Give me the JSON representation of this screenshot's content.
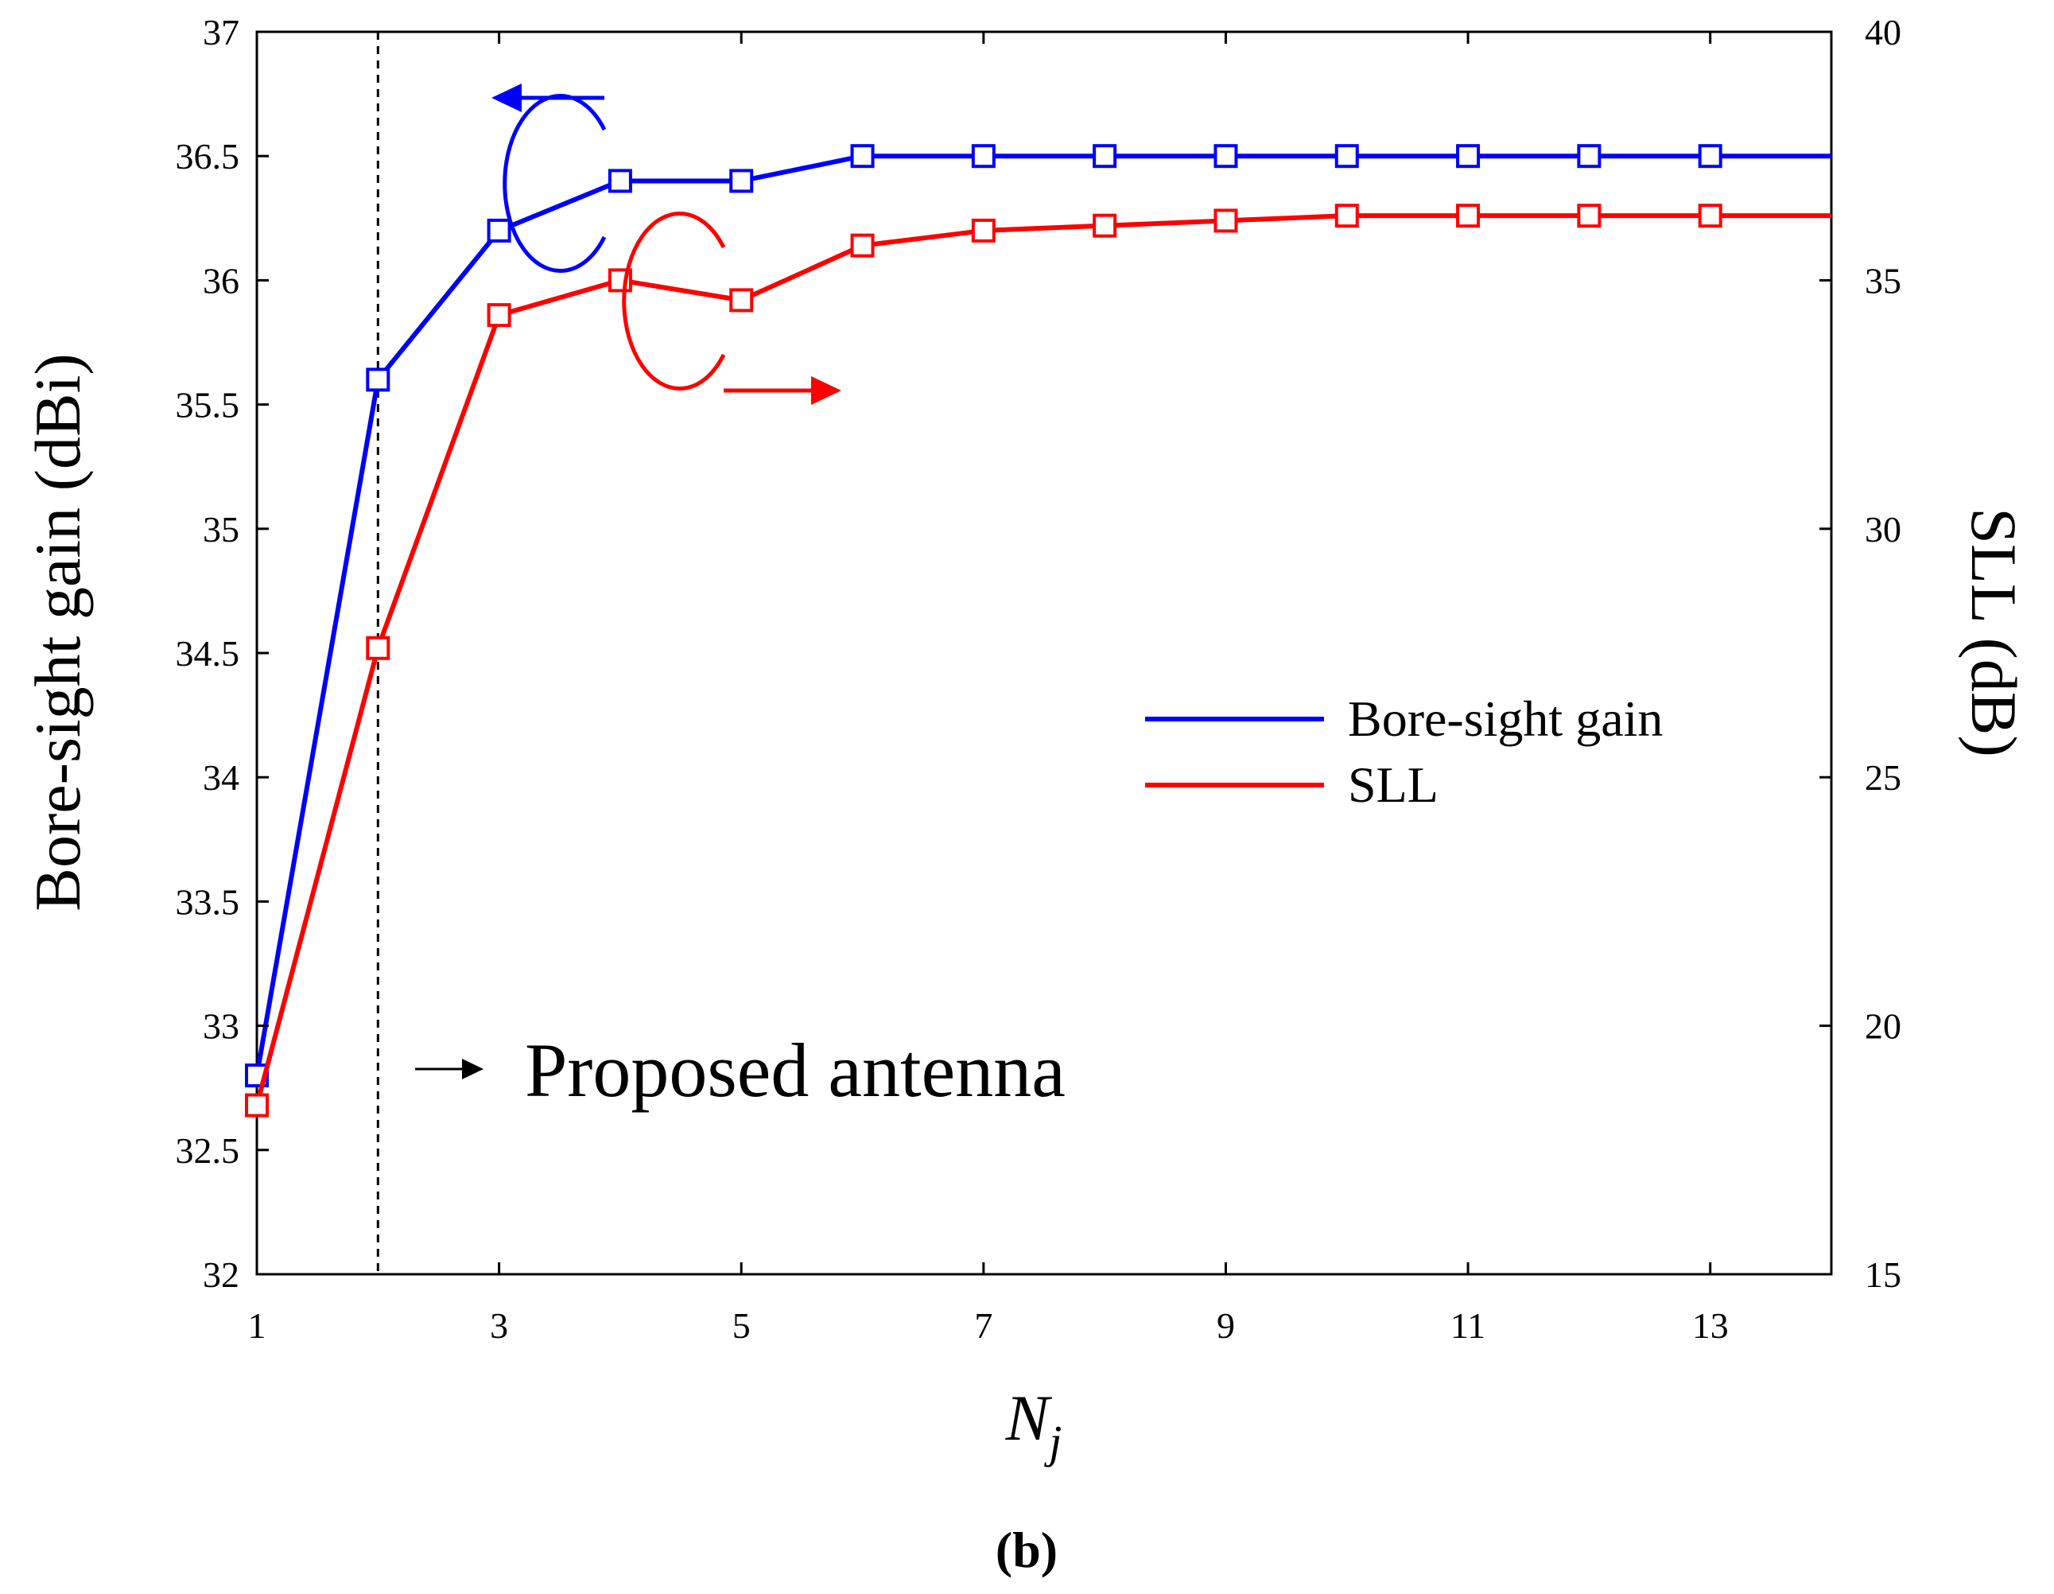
{
  "panel_label": "(b)",
  "annotation": "Proposed antenna",
  "colors": {
    "gain": "#0000ff",
    "sll": "#ff0000",
    "axes": "#000000"
  },
  "chart_data": {
    "type": "line",
    "title": "",
    "xlabel_main": "N",
    "xlabel_sub": "j",
    "ylabel_left": "Bore-sight gain (dBi)",
    "ylabel_right": "SLL (dB)",
    "xlim": [
      1,
      14
    ],
    "xticks": [
      1,
      3,
      5,
      7,
      9,
      11,
      13
    ],
    "ylim_left": [
      32,
      37
    ],
    "yticks_left": [
      32,
      32.5,
      33,
      33.5,
      34,
      34.5,
      35,
      35.5,
      36,
      36.5,
      37
    ],
    "ylim_right": [
      15,
      40
    ],
    "yticks_right": [
      15,
      20,
      25,
      30,
      35,
      40
    ],
    "marker_line_x": 2,
    "x": [
      1,
      2,
      3,
      4,
      5,
      6,
      7,
      8,
      9,
      10,
      11,
      12,
      13,
      14
    ],
    "series": [
      {
        "name": "Bore-sight gain",
        "axis": "left",
        "color": "#0000ff",
        "values": [
          32.8,
          35.6,
          36.2,
          36.4,
          36.4,
          36.5,
          36.5,
          36.5,
          36.5,
          36.5,
          36.5,
          36.5,
          36.5,
          36.5
        ]
      },
      {
        "name": "SLL",
        "axis": "right",
        "color": "#ff0000",
        "values": [
          18.4,
          27.6,
          34.3,
          35.0,
          34.6,
          35.7,
          36.0,
          36.1,
          36.2,
          36.3,
          36.3,
          36.3,
          36.3,
          36.3
        ]
      }
    ],
    "legend": {
      "position": "right-center",
      "entries": [
        "Bore-sight gain",
        "SLL"
      ]
    },
    "grid": false
  }
}
